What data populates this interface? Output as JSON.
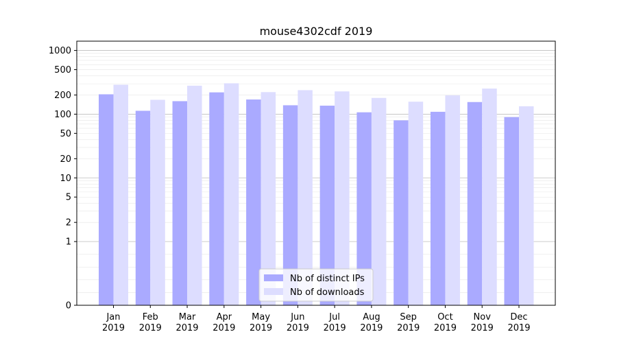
{
  "chart_data": {
    "type": "bar",
    "title": "mouse4302cdf 2019",
    "xlabel": "",
    "ylabel": "",
    "yscale": "symlog",
    "ylim": [
      0,
      1400
    ],
    "yticks": [
      0,
      1,
      2,
      5,
      10,
      20,
      50,
      100,
      200,
      500,
      1000
    ],
    "categories": [
      "Jan\n2019",
      "Feb\n2019",
      "Mar\n2019",
      "Apr\n2019",
      "May\n2019",
      "Jun\n2019",
      "Jul\n2019",
      "Aug\n2019",
      "Sep\n2019",
      "Oct\n2019",
      "Nov\n2019",
      "Dec\n2019"
    ],
    "series": [
      {
        "name": "Nb of distinct IPs",
        "color": "#aaaaff",
        "values": [
          205,
          113,
          160,
          220,
          170,
          138,
          136,
          107,
          80,
          109,
          155,
          90
        ]
      },
      {
        "name": "Nb of downloads",
        "color": "#ddddff",
        "values": [
          290,
          168,
          280,
          305,
          222,
          238,
          228,
          180,
          157,
          197,
          252,
          133
        ]
      }
    ],
    "grid": true,
    "legend": "bottom-center"
  }
}
